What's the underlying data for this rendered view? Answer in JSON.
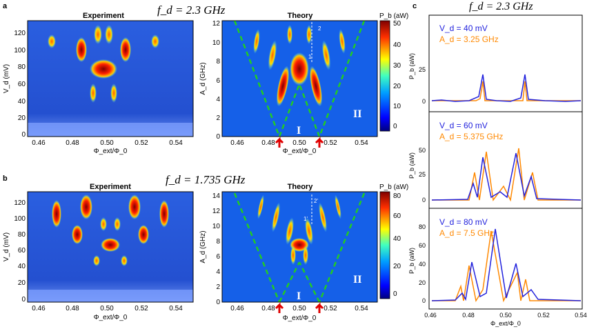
{
  "colors": {
    "frame": "#000000",
    "dash_green": "#22cc22",
    "arrow_red": "#e00000",
    "exp_blue": "#2222dd",
    "theory_orange": "#ff8800",
    "heat_low": "#00007f",
    "heat_high": "#7f0000"
  },
  "row_a": {
    "panel_letter": "a",
    "freq_label": "f_d = 2.3 GHz",
    "experiment": {
      "title": "Experiment",
      "ylabel": "V_d (mV)",
      "xlabel": "Φ_ext/Φ_0",
      "yticks": [
        "0",
        "20",
        "40",
        "60",
        "80",
        "100",
        "120"
      ],
      "xticks": [
        "0.46",
        "0.48",
        "0.50",
        "0.52",
        "0.54"
      ]
    },
    "theory": {
      "title": "Theory",
      "ylabel": "A_d (GHz)",
      "xlabel": "Φ_ext/Φ_0",
      "yticks": [
        "0",
        "2",
        "4",
        "6",
        "8",
        "10",
        "12"
      ],
      "xticks": [
        "0.46",
        "0.48",
        "0.50",
        "0.52",
        "0.54"
      ],
      "region1": "I",
      "region2": "II",
      "marker1": "1",
      "marker2": "2",
      "colorbar_label": "P_b (aW)",
      "colorbar_ticks": [
        "0",
        "10",
        "20",
        "30",
        "40",
        "50"
      ]
    }
  },
  "row_b": {
    "panel_letter": "b",
    "freq_label": "f_d = 1.735 GHz",
    "experiment": {
      "title": "Experiment",
      "ylabel": "V_d (mV)",
      "xlabel": "Φ_ext/Φ_0",
      "yticks": [
        "0",
        "20",
        "40",
        "60",
        "80",
        "100",
        "120"
      ],
      "xticks": [
        "0.46",
        "0.48",
        "0.50",
        "0.52",
        "0.54"
      ]
    },
    "theory": {
      "title": "Theory",
      "ylabel": "A_d (GHz)",
      "xlabel": "Φ_ext/Φ_0",
      "yticks": [
        "0",
        "2",
        "4",
        "6",
        "8",
        "10",
        "12",
        "14"
      ],
      "xticks": [
        "0.46",
        "0.48",
        "0.50",
        "0.52",
        "0.54"
      ],
      "region1": "I",
      "region2": "II",
      "marker1": "1'",
      "marker2": "2'",
      "colorbar_label": "P_b (aW)",
      "colorbar_ticks": [
        "0",
        "20",
        "40",
        "60",
        "80"
      ]
    }
  },
  "panel_c": {
    "panel_letter": "c",
    "freq_label": "f_d = 2.3 GHz",
    "xlabel": "Φ_ext/Φ_0",
    "ylabel": "P_b (aW)",
    "xticks": [
      "0.46",
      "0.48",
      "0.50",
      "0.52",
      "0.54"
    ],
    "subplots": [
      {
        "vd": "V_d = 40 mV",
        "ad": "A_d = 3.25 GHz",
        "yticks": [
          "0",
          "25"
        ]
      },
      {
        "vd": "V_d = 60 mV",
        "ad": "A_d = 5.375 GHz",
        "yticks": [
          "0",
          "25",
          "50"
        ]
      },
      {
        "vd": "V_d = 80 mV",
        "ad": "A_d = 7.5 GHz",
        "yticks": [
          "0",
          "20",
          "40",
          "60",
          "80"
        ]
      }
    ]
  }
}
